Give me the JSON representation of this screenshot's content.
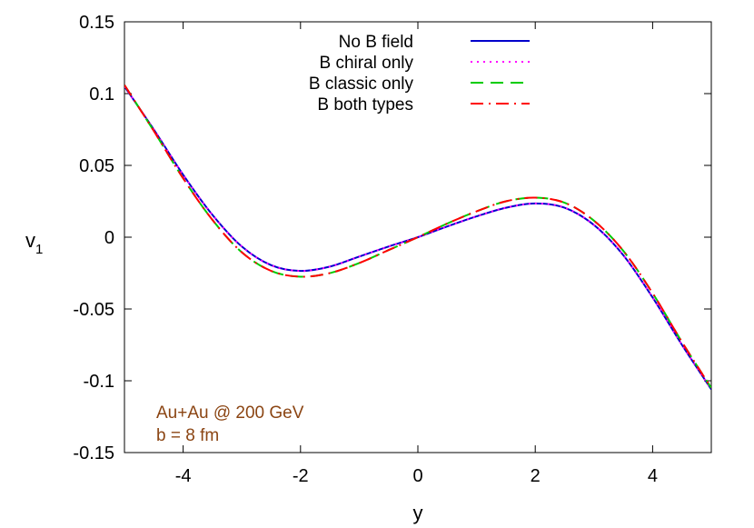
{
  "chart_data": {
    "type": "line",
    "xlabel": "y",
    "ylabel_main": "v",
    "ylabel_sub": "1",
    "xlim": [
      -5,
      5
    ],
    "ylim": [
      -0.15,
      0.15
    ],
    "xticks": [
      {
        "v": -4,
        "label": "-4"
      },
      {
        "v": -2,
        "label": "-2"
      },
      {
        "v": 0,
        "label": "0"
      },
      {
        "v": 2,
        "label": "2"
      },
      {
        "v": 4,
        "label": "4"
      }
    ],
    "yticks": [
      {
        "v": 0.15,
        "label": "0.15"
      },
      {
        "v": 0.1,
        "label": "0.1"
      },
      {
        "v": 0.05,
        "label": "0.05"
      },
      {
        "v": 0,
        "label": "0"
      },
      {
        "v": -0.05,
        "label": "-0.05"
      },
      {
        "v": -0.1,
        "label": "-0.1"
      },
      {
        "v": -0.15,
        "label": "-0.15"
      }
    ],
    "grid": false,
    "legend_position": "top-center",
    "series": [
      {
        "name": "No B field",
        "color": "#0000cc",
        "dash": "solid",
        "x": [
          -5,
          -4.5,
          -4,
          -3.5,
          -3,
          -2.5,
          -2,
          -1.5,
          -1,
          -0.5,
          0,
          0.5,
          1,
          1.5,
          2,
          2.5,
          3,
          3.5,
          4,
          4.5,
          5
        ],
        "y": [
          0.105,
          0.075,
          0.0435,
          0.0155,
          -0.0065,
          -0.0195,
          -0.0235,
          -0.0205,
          -0.0135,
          -0.0065,
          0,
          0.0075,
          0.0145,
          0.0205,
          0.0235,
          0.0205,
          0.0085,
          -0.0125,
          -0.042,
          -0.075,
          -0.106
        ]
      },
      {
        "name": "B chiral only",
        "color": "#ff00ff",
        "dash": "dotted",
        "x": [
          -5,
          -4.5,
          -4,
          -3.5,
          -3,
          -2.5,
          -2,
          -1.5,
          -1,
          -0.5,
          0,
          0.5,
          1,
          1.5,
          2,
          2.5,
          3,
          3.5,
          4,
          4.5,
          5
        ],
        "y": [
          0.105,
          0.075,
          0.0435,
          0.0155,
          -0.0065,
          -0.0195,
          -0.0235,
          -0.0205,
          -0.0135,
          -0.0065,
          0,
          0.0075,
          0.0145,
          0.0205,
          0.0235,
          0.0205,
          0.0085,
          -0.0125,
          -0.042,
          -0.075,
          -0.106
        ]
      },
      {
        "name": "B classic only",
        "color": "#00cc00",
        "dash": "dashed",
        "x": [
          -5,
          -4.5,
          -4,
          -3.5,
          -3,
          -2.5,
          -2,
          -1.5,
          -1,
          -0.5,
          0,
          0.5,
          1,
          1.5,
          2,
          2.5,
          3,
          3.5,
          4,
          4.5,
          5
        ],
        "y": [
          0.106,
          0.074,
          0.041,
          0.012,
          -0.0105,
          -0.0235,
          -0.0275,
          -0.025,
          -0.018,
          -0.009,
          0,
          0.0095,
          0.018,
          0.025,
          0.0275,
          0.024,
          0.0115,
          -0.0095,
          -0.039,
          -0.073,
          -0.105
        ]
      },
      {
        "name": "B both types",
        "color": "#ff0000",
        "dash": "dashdot",
        "x": [
          -5,
          -4.5,
          -4,
          -3.5,
          -3,
          -2.5,
          -2,
          -1.5,
          -1,
          -0.5,
          0,
          0.5,
          1,
          1.5,
          2,
          2.5,
          3,
          3.5,
          4,
          4.5,
          5
        ],
        "y": [
          0.106,
          0.074,
          0.041,
          0.012,
          -0.0105,
          -0.0235,
          -0.0275,
          -0.025,
          -0.018,
          -0.009,
          0,
          0.0095,
          0.018,
          0.025,
          0.0275,
          0.024,
          0.0115,
          -0.0095,
          -0.039,
          -0.073,
          -0.105
        ]
      }
    ],
    "annotations": [
      "Au+Au @ 200 GeV",
      "b = 8 fm"
    ]
  }
}
